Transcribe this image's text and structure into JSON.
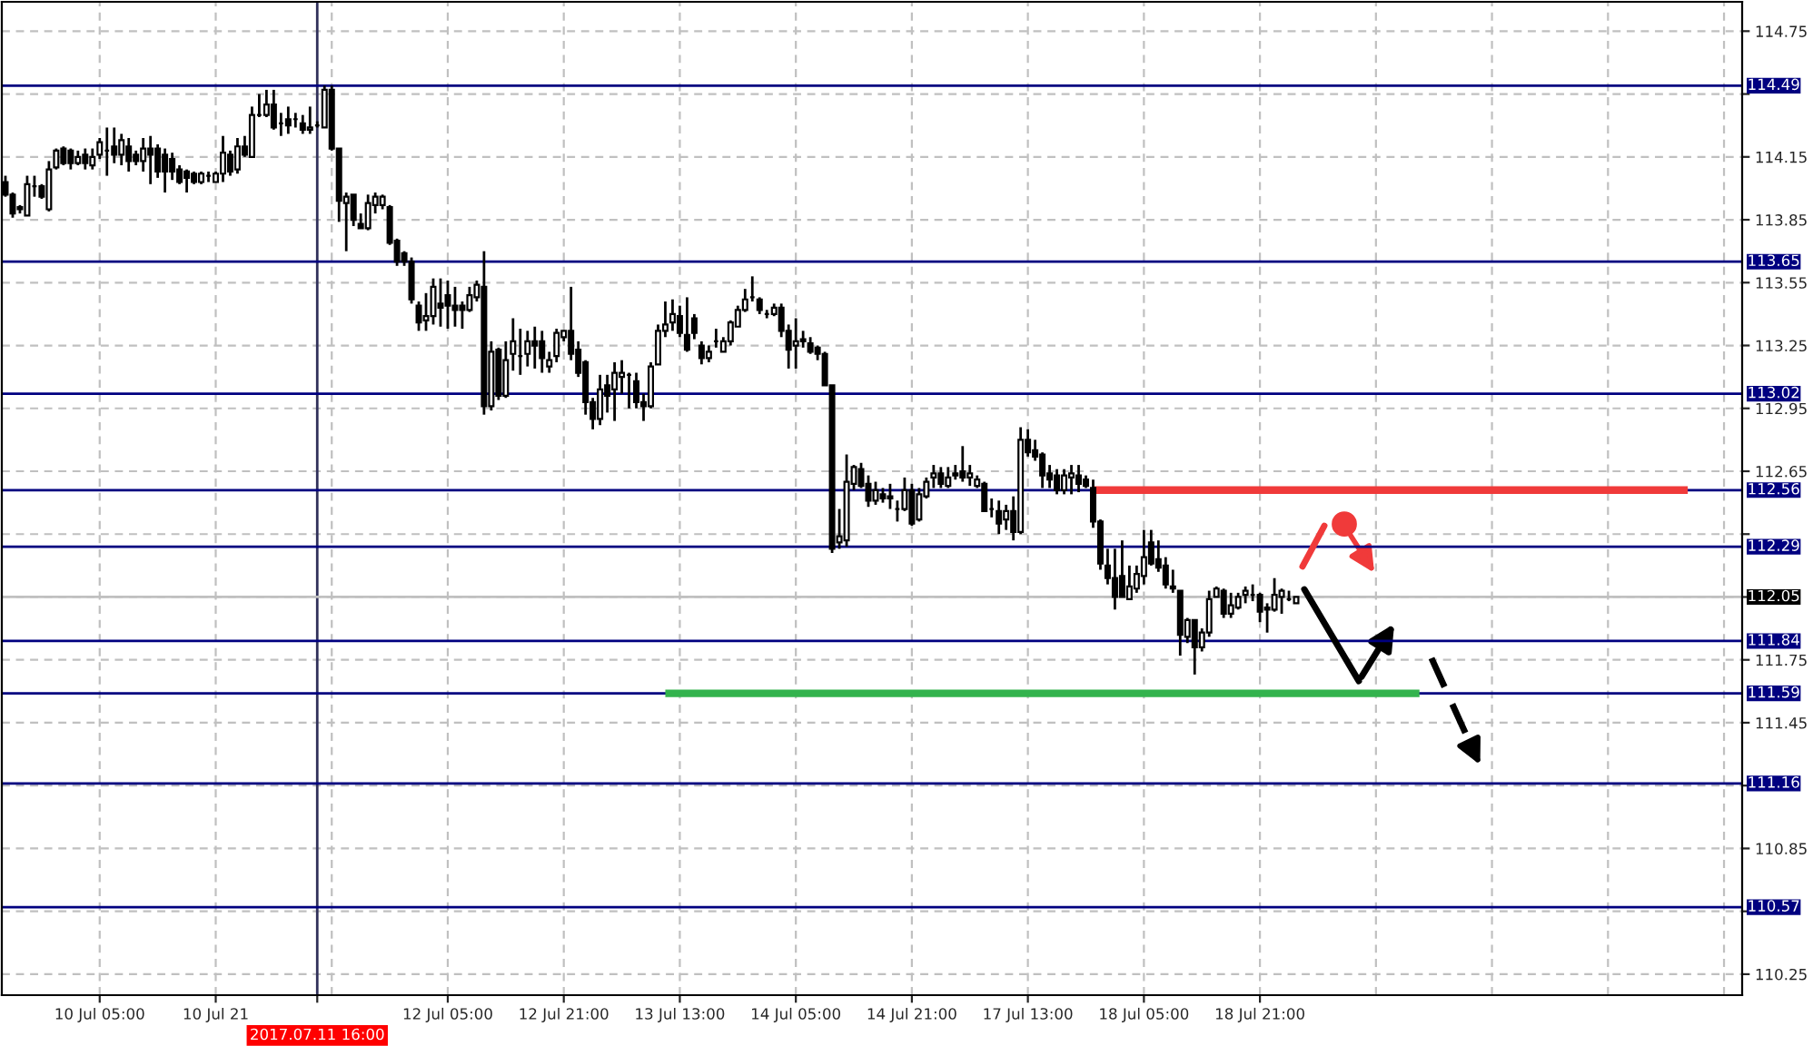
{
  "chart_data": {
    "type": "candlestick",
    "categories": [
      null,
      null,
      null,
      null,
      null,
      null,
      null,
      null,
      null,
      null,
      null,
      null,
      null,
      "10 Jul 05:00",
      null,
      null,
      null,
      null,
      null,
      null,
      null,
      null,
      null,
      null,
      null,
      null,
      null,
      null,
      null,
      "10 Jul 21",
      null,
      null,
      null,
      null,
      null,
      null,
      null,
      null,
      null,
      null,
      null,
      null,
      null,
      "2017.07.11 16:00",
      null,
      null,
      null,
      null,
      null,
      null,
      null,
      null,
      null,
      null,
      null,
      null,
      null,
      null,
      null,
      null,
      null,
      "12 Jul 05:00",
      null,
      null,
      null,
      null,
      null,
      null,
      null,
      null,
      null,
      null,
      null,
      null,
      null,
      null,
      null,
      "12 Jul 21:00",
      null,
      null,
      null,
      null,
      null,
      null,
      null,
      null,
      null,
      null,
      null,
      null,
      null,
      null,
      null,
      "13 Jul 13:00",
      null,
      null,
      null,
      null,
      null,
      null,
      null,
      null,
      null,
      null,
      null,
      null,
      null,
      null,
      null,
      "14 Jul 05:00",
      null,
      null,
      null,
      null,
      null,
      null,
      null,
      null,
      null,
      null,
      null,
      null,
      null,
      null,
      null,
      "14 Jul 21:00",
      null,
      null,
      null,
      null,
      null,
      null,
      null,
      null,
      null,
      null,
      null,
      null,
      null,
      null,
      null,
      "17 Jul 13:00",
      null,
      null,
      null,
      null,
      null,
      null,
      null,
      null,
      null,
      null,
      null,
      null,
      null,
      null,
      null,
      "18 Jul 05:00",
      null,
      null,
      null,
      null,
      null,
      null,
      null,
      null,
      null,
      null,
      null,
      null,
      null,
      null,
      null,
      "18 Jul 21:00",
      null,
      null,
      null,
      null,
      null,
      null,
      null,
      null,
      null,
      null,
      null,
      null,
      null,
      null,
      null,
      null,
      null,
      null,
      null,
      null,
      null,
      null,
      null,
      null,
      null,
      null,
      null,
      null,
      null,
      null,
      null,
      null,
      null,
      null,
      null,
      null,
      null,
      null,
      null,
      null,
      null,
      null,
      null,
      null,
      null,
      null,
      null,
      null,
      null,
      null,
      null,
      null,
      null,
      null,
      null,
      null,
      null,
      null,
      null,
      null,
      null,
      null,
      null,
      null,
      null,
      null
    ],
    "ohlc": [
      [
        114.03,
        114.06,
        113.96,
        113.97
      ],
      [
        113.97,
        113.98,
        113.86,
        113.88
      ],
      [
        113.91,
        113.92,
        113.88,
        113.9
      ],
      [
        113.87,
        114.06,
        113.87,
        114.02
      ],
      [
        114.01,
        114.06,
        113.96,
        114.01
      ],
      [
        114.01,
        114.02,
        113.95,
        113.96
      ],
      [
        113.9,
        114.13,
        113.89,
        114.09
      ],
      [
        114.1,
        114.19,
        114.09,
        114.18
      ],
      [
        114.19,
        114.2,
        114.11,
        114.12
      ],
      [
        114.18,
        114.19,
        114.09,
        114.12
      ],
      [
        114.12,
        114.18,
        114.11,
        114.15
      ],
      [
        114.16,
        114.19,
        114.09,
        114.12
      ],
      [
        114.11,
        114.19,
        114.09,
        114.15
      ],
      [
        114.16,
        114.24,
        114.14,
        114.22
      ],
      [
        114.18,
        114.29,
        114.06,
        114.18
      ],
      [
        114.2,
        114.29,
        114.12,
        114.16
      ],
      [
        114.16,
        114.26,
        114.11,
        114.23
      ],
      [
        114.2,
        114.24,
        114.08,
        114.13
      ],
      [
        114.16,
        114.18,
        114.11,
        114.13
      ],
      [
        114.13,
        114.24,
        114.08,
        114.19
      ],
      [
        114.19,
        114.25,
        114.02,
        114.16
      ],
      [
        114.19,
        114.21,
        114.05,
        114.08
      ],
      [
        114.16,
        114.19,
        113.98,
        114.08
      ],
      [
        114.14,
        114.17,
        114.04,
        114.08
      ],
      [
        114.09,
        114.11,
        114.02,
        114.03
      ],
      [
        114.08,
        114.09,
        113.98,
        114.05
      ],
      [
        114.07,
        114.08,
        114.02,
        114.03
      ],
      [
        114.03,
        114.08,
        114.02,
        114.07
      ],
      [
        114.06,
        114.08,
        114.03,
        114.06
      ],
      [
        114.03,
        114.08,
        114.03,
        114.07
      ],
      [
        114.07,
        114.25,
        114.03,
        114.17
      ],
      [
        114.16,
        114.18,
        114.06,
        114.08
      ],
      [
        114.09,
        114.24,
        114.07,
        114.2
      ],
      [
        114.2,
        114.25,
        114.15,
        114.16
      ],
      [
        114.15,
        114.39,
        114.15,
        114.35
      ],
      [
        114.35,
        114.45,
        114.34,
        114.35
      ],
      [
        114.35,
        114.47,
        114.34,
        114.4
      ],
      [
        114.4,
        114.47,
        114.28,
        114.29
      ],
      [
        114.31,
        114.36,
        114.25,
        114.31
      ],
      [
        114.33,
        114.39,
        114.26,
        114.3
      ],
      [
        114.33,
        114.36,
        114.29,
        114.33
      ],
      [
        114.31,
        114.35,
        114.26,
        114.28
      ],
      [
        114.28,
        114.39,
        114.26,
        114.29
      ],
      [
        114.3,
        114.32,
        114.29,
        114.3
      ],
      [
        114.29,
        114.49,
        114.29,
        114.47
      ],
      [
        114.47,
        114.49,
        114.18,
        114.19
      ],
      [
        114.19,
        114.19,
        113.84,
        113.94
      ],
      [
        113.93,
        113.98,
        113.7,
        113.96
      ],
      [
        113.97,
        113.97,
        113.82,
        113.85
      ],
      [
        113.83,
        113.88,
        113.81,
        113.81
      ],
      [
        113.81,
        113.97,
        113.8,
        113.93
      ],
      [
        113.92,
        113.98,
        113.88,
        113.96
      ],
      [
        113.92,
        113.97,
        113.9,
        113.96
      ],
      [
        113.91,
        113.92,
        113.73,
        113.74
      ],
      [
        113.75,
        113.76,
        113.63,
        113.65
      ],
      [
        113.69,
        113.7,
        113.63,
        113.65
      ],
      [
        113.65,
        113.67,
        113.45,
        113.47
      ],
      [
        113.44,
        113.46,
        113.32,
        113.36
      ],
      [
        113.37,
        113.5,
        113.32,
        113.39
      ],
      [
        113.39,
        113.57,
        113.35,
        113.53
      ],
      [
        113.45,
        113.57,
        113.34,
        113.43
      ],
      [
        113.49,
        113.56,
        113.33,
        113.44
      ],
      [
        113.44,
        113.53,
        113.34,
        113.42
      ],
      [
        113.44,
        113.46,
        113.33,
        113.42
      ],
      [
        113.42,
        113.53,
        113.41,
        113.49
      ],
      [
        113.48,
        113.56,
        113.46,
        113.54
      ],
      [
        113.53,
        113.7,
        112.92,
        112.96
      ],
      [
        112.96,
        113.27,
        112.94,
        113.22
      ],
      [
        113.23,
        113.24,
        112.99,
        113.01
      ],
      [
        113.01,
        113.27,
        113.0,
        113.18
      ],
      [
        113.21,
        113.38,
        113.13,
        113.27
      ],
      [
        113.2,
        113.33,
        113.11,
        113.2
      ],
      [
        113.21,
        113.32,
        113.15,
        113.27
      ],
      [
        113.27,
        113.34,
        113.14,
        113.25
      ],
      [
        113.27,
        113.32,
        113.12,
        113.19
      ],
      [
        113.15,
        113.22,
        113.12,
        113.18
      ],
      [
        113.2,
        113.33,
        113.17,
        113.31
      ],
      [
        113.29,
        113.32,
        113.27,
        113.32
      ],
      [
        113.32,
        113.53,
        113.18,
        113.21
      ],
      [
        113.23,
        113.27,
        113.1,
        113.12
      ],
      [
        113.17,
        113.18,
        112.92,
        112.98
      ],
      [
        112.98,
        113.0,
        112.85,
        112.9
      ],
      [
        112.9,
        113.11,
        112.87,
        113.04
      ],
      [
        113.06,
        113.11,
        112.93,
        113.01
      ],
      [
        113.04,
        113.17,
        112.89,
        113.12
      ],
      [
        113.1,
        113.18,
        113.02,
        113.12
      ],
      [
        113.11,
        113.12,
        112.95,
        113.11
      ],
      [
        113.08,
        113.12,
        112.95,
        112.98
      ],
      [
        112.98,
        113.02,
        112.89,
        112.96
      ],
      [
        112.96,
        113.17,
        112.95,
        113.15
      ],
      [
        113.16,
        113.35,
        113.16,
        113.32
      ],
      [
        113.32,
        113.46,
        113.29,
        113.35
      ],
      [
        113.36,
        113.47,
        113.32,
        113.4
      ],
      [
        113.39,
        113.44,
        113.29,
        113.31
      ],
      [
        113.3,
        113.48,
        113.22,
        113.23
      ],
      [
        113.38,
        113.4,
        113.28,
        113.31
      ],
      [
        113.25,
        113.27,
        113.16,
        113.19
      ],
      [
        113.19,
        113.25,
        113.17,
        113.22
      ],
      [
        113.27,
        113.33,
        113.24,
        113.27
      ],
      [
        113.22,
        113.29,
        113.22,
        113.27
      ],
      [
        113.27,
        113.37,
        113.25,
        113.36
      ],
      [
        113.34,
        113.44,
        113.34,
        113.42
      ],
      [
        113.42,
        113.52,
        113.41,
        113.47
      ],
      [
        113.48,
        113.58,
        113.46,
        113.48
      ],
      [
        113.47,
        113.48,
        113.4,
        113.42
      ],
      [
        113.4,
        113.42,
        113.38,
        113.4
      ],
      [
        113.4,
        113.45,
        113.39,
        113.43
      ],
      [
        113.43,
        113.45,
        113.29,
        113.32
      ],
      [
        113.32,
        113.35,
        113.14,
        113.23
      ],
      [
        113.25,
        113.38,
        113.14,
        113.27
      ],
      [
        113.28,
        113.32,
        113.24,
        113.27
      ],
      [
        113.26,
        113.29,
        113.21,
        113.22
      ],
      [
        113.24,
        113.25,
        113.18,
        113.21
      ],
      [
        113.21,
        113.22,
        113.06,
        113.06
      ],
      [
        113.06,
        113.06,
        112.26,
        112.28
      ],
      [
        112.31,
        112.47,
        112.28,
        112.34
      ],
      [
        112.32,
        112.73,
        112.29,
        112.6
      ],
      [
        112.59,
        112.68,
        112.56,
        112.67
      ],
      [
        112.66,
        112.69,
        112.57,
        112.58
      ],
      [
        112.59,
        112.63,
        112.48,
        112.51
      ],
      [
        112.51,
        112.6,
        112.49,
        112.56
      ],
      [
        112.54,
        112.57,
        112.5,
        112.52
      ],
      [
        112.53,
        112.59,
        112.47,
        112.52
      ],
      [
        112.47,
        112.51,
        112.41,
        112.47
      ],
      [
        112.47,
        112.62,
        112.46,
        112.56
      ],
      [
        112.56,
        112.59,
        112.39,
        112.4
      ],
      [
        112.42,
        112.57,
        112.41,
        112.54
      ],
      [
        112.53,
        112.62,
        112.52,
        112.6
      ],
      [
        112.62,
        112.68,
        112.57,
        112.64
      ],
      [
        112.64,
        112.67,
        112.57,
        112.59
      ],
      [
        112.58,
        112.67,
        112.57,
        112.62
      ],
      [
        112.63,
        112.68,
        112.61,
        112.64
      ],
      [
        112.65,
        112.77,
        112.6,
        112.62
      ],
      [
        112.62,
        112.68,
        112.58,
        112.64
      ],
      [
        112.58,
        112.63,
        112.57,
        112.61
      ],
      [
        112.59,
        112.6,
        112.46,
        112.46
      ],
      [
        112.47,
        112.52,
        112.43,
        112.47
      ],
      [
        112.46,
        112.51,
        112.35,
        112.4
      ],
      [
        112.42,
        112.49,
        112.37,
        112.46
      ],
      [
        112.46,
        112.53,
        112.32,
        112.36
      ],
      [
        112.36,
        112.86,
        112.35,
        112.8
      ],
      [
        112.8,
        112.85,
        112.72,
        112.74
      ],
      [
        112.75,
        112.8,
        112.7,
        112.72
      ],
      [
        112.73,
        112.74,
        112.57,
        112.63
      ],
      [
        112.64,
        112.68,
        112.57,
        112.61
      ],
      [
        112.63,
        112.66,
        112.54,
        112.56
      ],
      [
        112.56,
        112.66,
        112.54,
        112.63
      ],
      [
        112.62,
        112.68,
        112.54,
        112.64
      ],
      [
        112.63,
        112.68,
        112.55,
        112.59
      ],
      [
        112.61,
        112.63,
        112.57,
        112.58
      ],
      [
        112.57,
        112.61,
        112.38,
        112.41
      ],
      [
        112.41,
        112.42,
        112.18,
        112.21
      ],
      [
        112.2,
        112.28,
        112.11,
        112.14
      ],
      [
        112.14,
        112.28,
        111.99,
        112.05
      ],
      [
        112.15,
        112.32,
        112.05,
        112.05
      ],
      [
        112.04,
        112.2,
        112.04,
        112.1
      ],
      [
        112.09,
        112.2,
        112.07,
        112.16
      ],
      [
        112.15,
        112.37,
        112.11,
        112.24
      ],
      [
        112.31,
        112.37,
        112.2,
        112.21
      ],
      [
        112.23,
        112.32,
        112.17,
        112.19
      ],
      [
        112.2,
        112.24,
        112.09,
        112.11
      ],
      [
        112.1,
        112.18,
        112.07,
        112.09
      ],
      [
        112.08,
        112.08,
        111.77,
        111.87
      ],
      [
        111.86,
        111.95,
        111.83,
        111.94
      ],
      [
        111.94,
        111.94,
        111.68,
        111.81
      ],
      [
        111.81,
        111.9,
        111.79,
        111.88
      ],
      [
        111.88,
        112.08,
        111.86,
        112.04
      ],
      [
        112.05,
        112.1,
        112.05,
        112.09
      ],
      [
        112.08,
        112.09,
        111.95,
        111.97
      ],
      [
        111.97,
        112.07,
        111.95,
        112.01
      ],
      [
        112.0,
        112.07,
        111.99,
        112.05
      ],
      [
        112.06,
        112.1,
        112.02,
        112.08
      ],
      [
        112.06,
        112.11,
        112.03,
        112.06
      ],
      [
        112.06,
        112.07,
        111.93,
        111.98
      ],
      [
        112.0,
        112.02,
        111.88,
        111.99
      ],
      [
        111.99,
        112.14,
        111.98,
        112.06
      ],
      [
        112.05,
        112.09,
        111.97,
        112.08
      ],
      [
        112.04,
        112.08,
        112.03,
        112.04
      ],
      [
        112.02,
        112.05,
        112.02,
        112.05
      ],
      null,
      null,
      null,
      null,
      null,
      null,
      null,
      null,
      null,
      null,
      null,
      null,
      null,
      null,
      null,
      null,
      null,
      null,
      null,
      null,
      null,
      null,
      null,
      null,
      null,
      null,
      null,
      null,
      null,
      null,
      null,
      null,
      null,
      null,
      null,
      null,
      null,
      null,
      null,
      null,
      null,
      null,
      null,
      null,
      null,
      null,
      null,
      null,
      null,
      null,
      null,
      null,
      null,
      null,
      null,
      null,
      null,
      null,
      null,
      null,
      null
    ],
    "series": [
      {
        "type": "line",
        "color": "#f03a3a",
        "values": [
          null,
          null,
          null,
          null,
          null,
          null,
          null,
          null,
          null,
          null,
          null,
          null,
          null,
          null,
          null,
          null,
          null,
          null,
          null,
          null,
          null,
          null,
          null,
          null,
          null,
          null,
          null,
          null,
          null,
          null,
          null,
          null,
          null,
          null,
          null,
          null,
          null,
          null,
          null,
          null,
          null,
          null,
          null,
          null,
          null,
          null,
          null,
          null,
          null,
          null,
          null,
          null,
          null,
          null,
          null,
          null,
          null,
          null,
          null,
          null,
          null,
          null,
          null,
          null,
          null,
          null,
          null,
          null,
          null,
          null,
          null,
          null,
          null,
          null,
          null,
          null,
          null,
          null,
          null,
          null,
          null,
          null,
          null,
          null,
          null,
          null,
          null,
          null,
          null,
          null,
          null,
          null,
          null,
          null,
          null,
          null,
          null,
          null,
          null,
          null,
          null,
          null,
          null,
          null,
          null,
          null,
          null,
          null,
          null,
          null,
          null,
          null,
          null,
          null,
          null,
          null,
          null,
          null,
          null,
          null,
          null,
          null,
          null,
          null,
          null,
          null,
          null,
          null,
          null,
          null,
          null,
          null,
          null,
          null,
          null,
          null,
          null,
          null,
          null,
          null,
          null,
          null,
          null,
          null,
          null,
          null,
          null,
          null,
          null,
          null,
          112.56,
          112.56,
          112.56,
          112.56,
          112.56,
          112.56,
          112.56,
          112.56,
          112.56,
          112.56,
          112.56,
          112.56,
          112.56,
          112.56,
          112.56,
          112.56,
          112.56,
          112.56,
          112.56,
          112.56,
          112.56,
          112.56,
          112.56,
          112.56,
          112.56,
          112.56,
          112.56,
          112.56,
          112.56,
          112.56,
          112.56,
          112.56,
          112.56,
          112.56,
          112.56,
          112.56,
          112.56,
          112.56,
          112.56,
          112.56,
          112.56,
          112.56,
          112.56,
          112.56,
          112.56,
          112.56,
          112.56,
          112.56,
          112.56,
          112.56,
          112.56,
          112.56,
          112.56,
          112.56,
          112.56,
          112.56,
          112.56,
          112.56,
          112.56,
          112.56,
          112.56,
          112.56,
          112.56,
          112.56,
          112.56,
          112.56,
          112.56,
          112.56,
          112.56,
          112.56,
          112.56,
          112.56,
          112.56,
          112.56,
          112.56,
          112.56,
          112.56,
          112.56,
          112.56,
          112.56,
          112.56,
          112.56,
          112.56,
          null,
          null,
          null,
          null,
          null,
          null,
          null
        ]
      },
      {
        "type": "line",
        "color": "#33b34d",
        "values": [
          null,
          null,
          null,
          null,
          null,
          null,
          null,
          null,
          null,
          null,
          null,
          null,
          null,
          null,
          null,
          null,
          null,
          null,
          null,
          null,
          null,
          null,
          null,
          null,
          null,
          null,
          null,
          null,
          null,
          null,
          null,
          null,
          null,
          null,
          null,
          null,
          null,
          null,
          null,
          null,
          null,
          null,
          null,
          null,
          null,
          null,
          null,
          null,
          null,
          null,
          null,
          null,
          null,
          null,
          null,
          null,
          null,
          null,
          null,
          null,
          null,
          null,
          null,
          null,
          null,
          null,
          null,
          null,
          null,
          null,
          null,
          null,
          null,
          null,
          null,
          null,
          null,
          null,
          null,
          null,
          null,
          null,
          null,
          null,
          null,
          null,
          null,
          null,
          null,
          null,
          null,
          111.59,
          111.59,
          111.59,
          111.59,
          111.59,
          111.59,
          111.59,
          111.59,
          111.59,
          111.59,
          111.59,
          111.59,
          111.59,
          111.59,
          111.59,
          111.59,
          111.59,
          111.59,
          111.59,
          111.59,
          111.59,
          111.59,
          111.59,
          111.59,
          111.59,
          111.59,
          111.59,
          111.59,
          111.59,
          111.59,
          111.59,
          111.59,
          111.59,
          111.59,
          111.59,
          111.59,
          111.59,
          111.59,
          111.59,
          111.59,
          111.59,
          111.59,
          111.59,
          111.59,
          111.59,
          111.59,
          111.59,
          111.59,
          111.59,
          111.59,
          111.59,
          111.59,
          111.59,
          111.59,
          111.59,
          111.59,
          111.59,
          111.59,
          111.59,
          111.59,
          111.59,
          111.59,
          111.59,
          111.59,
          111.59,
          111.59,
          111.59,
          111.59,
          111.59,
          111.59,
          111.59,
          111.59,
          111.59,
          111.59,
          111.59,
          111.59,
          111.59,
          111.59,
          111.59,
          111.59,
          111.59,
          111.59,
          111.59,
          111.59,
          111.59,
          111.59,
          111.59,
          111.59,
          111.59,
          111.59,
          111.59,
          111.59,
          111.59,
          111.59,
          111.59,
          111.59,
          111.59,
          111.59,
          111.59,
          111.59,
          111.59,
          111.59,
          111.59,
          111.59,
          111.59,
          null,
          null,
          null,
          null,
          null,
          null,
          null,
          null,
          null,
          null,
          null,
          null,
          null,
          null,
          null,
          null,
          null,
          null,
          null,
          null,
          null,
          null,
          null,
          null,
          null,
          null,
          null,
          null,
          null,
          null,
          null,
          null,
          null,
          null,
          null,
          null,
          null,
          null,
          null,
          null,
          null,
          null,
          null,
          null
        ]
      }
    ],
    "ylim": [
      110.15,
      114.89
    ],
    "yticks": [
      110.25,
      {
        "value": 110.55,
        "label": null
      },
      110.85,
      {
        "value": 111.15,
        "label": null
      },
      111.45,
      111.75,
      {
        "value": 112.05,
        "label": null
      },
      {
        "value": 112.35,
        "label": null
      },
      112.65,
      112.95,
      113.25,
      113.55,
      113.85,
      114.15,
      {
        "value": 114.45,
        "label": null
      },
      114.75
    ],
    "ref_lines": [
      {
        "axis": "y",
        "value": 114.49,
        "label": "114.49",
        "color": "#000080"
      },
      {
        "axis": "y",
        "value": 113.65,
        "label": "113.65",
        "color": "#000080"
      },
      {
        "axis": "y",
        "value": 113.02,
        "label": "113.02",
        "color": "#000080"
      },
      {
        "axis": "y",
        "value": 112.56,
        "label": "112.56",
        "color": "#000080"
      },
      {
        "axis": "y",
        "value": 112.29,
        "label": "112.29",
        "color": "#000080"
      },
      {
        "axis": "y",
        "value": 112.05,
        "label": "112.05",
        "color": "#c0c0c0"
      },
      {
        "axis": "y",
        "value": 111.84,
        "label": "111.84",
        "color": "#000080"
      },
      {
        "axis": "y",
        "value": 111.59,
        "label": "111.59",
        "color": "#000080"
      },
      {
        "axis": "y",
        "value": 111.16,
        "label": "111.16",
        "color": "#000080"
      },
      {
        "axis": "y",
        "value": 110.57,
        "label": "110.57",
        "color": "#000080"
      },
      {
        "axis": "x",
        "value": "2017.07.11 16:00",
        "color": "#30305a"
      }
    ],
    "grid": true
  }
}
